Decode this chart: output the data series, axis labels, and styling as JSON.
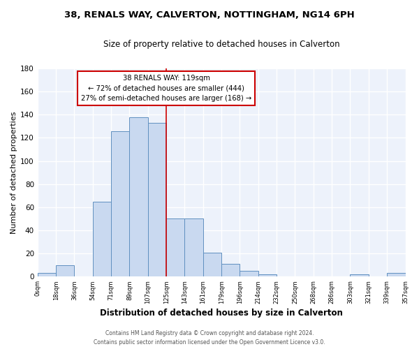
{
  "title": "38, RENALS WAY, CALVERTON, NOTTINGHAM, NG14 6PH",
  "subtitle": "Size of property relative to detached houses in Calverton",
  "xlabel": "Distribution of detached houses by size in Calverton",
  "ylabel": "Number of detached properties",
  "bar_color": "#c9d9f0",
  "bar_edge_color": "#6090c0",
  "background_color": "#edf2fb",
  "grid_color": "white",
  "tick_labels": [
    "0sqm",
    "18sqm",
    "36sqm",
    "54sqm",
    "71sqm",
    "89sqm",
    "107sqm",
    "125sqm",
    "143sqm",
    "161sqm",
    "179sqm",
    "196sqm",
    "214sqm",
    "232sqm",
    "250sqm",
    "268sqm",
    "286sqm",
    "303sqm",
    "321sqm",
    "339sqm",
    "357sqm"
  ],
  "bar_heights": [
    3,
    10,
    0,
    65,
    126,
    138,
    133,
    50,
    50,
    21,
    11,
    5,
    2,
    0,
    0,
    0,
    0,
    2,
    0,
    3
  ],
  "ylim": [
    0,
    180
  ],
  "yticks": [
    0,
    20,
    40,
    60,
    80,
    100,
    120,
    140,
    160,
    180
  ],
  "property_line_x": 7,
  "property_line_label": "38 RENALS WAY: 119sqm",
  "annotation_line1": "← 72% of detached houses are smaller (444)",
  "annotation_line2": "27% of semi-detached houses are larger (168) →",
  "annotation_box_color": "white",
  "annotation_box_edge_color": "#cc0000",
  "property_line_color": "#cc0000",
  "footer_line1": "Contains HM Land Registry data © Crown copyright and database right 2024.",
  "footer_line2": "Contains public sector information licensed under the Open Government Licence v3.0."
}
